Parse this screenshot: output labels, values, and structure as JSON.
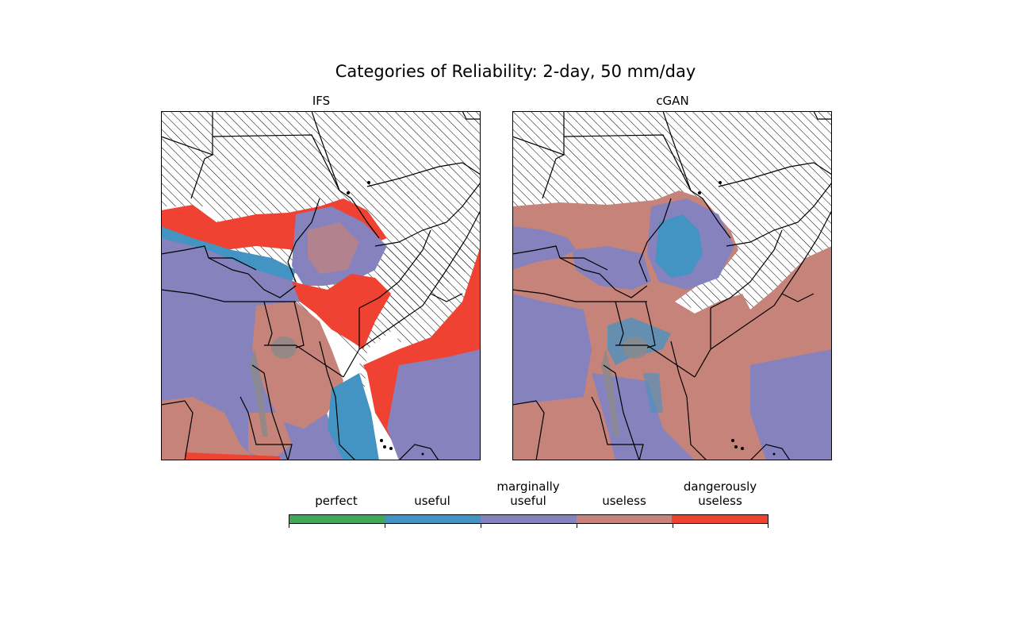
{
  "title": "Categories of Reliability: 2-day, 50 mm/day",
  "panels": [
    {
      "title": "IFS"
    },
    {
      "title": "cGAN"
    }
  ],
  "legend": {
    "categories": [
      {
        "label": "perfect",
        "color": "#41a85a"
      },
      {
        "label": "useful",
        "color": "#4393c3"
      },
      {
        "label": "marginally\nuseful",
        "color": "#8582bd"
      },
      {
        "label": "useless",
        "color": "#c5837a"
      },
      {
        "label": "dangerously\nuseless",
        "color": "#ef4232"
      }
    ],
    "hatch_meaning_icon": "diagonal-hatch"
  },
  "colors": {
    "hatch_line": "#000000",
    "borders": "#000000",
    "lakes": "#8a8a8a"
  }
}
